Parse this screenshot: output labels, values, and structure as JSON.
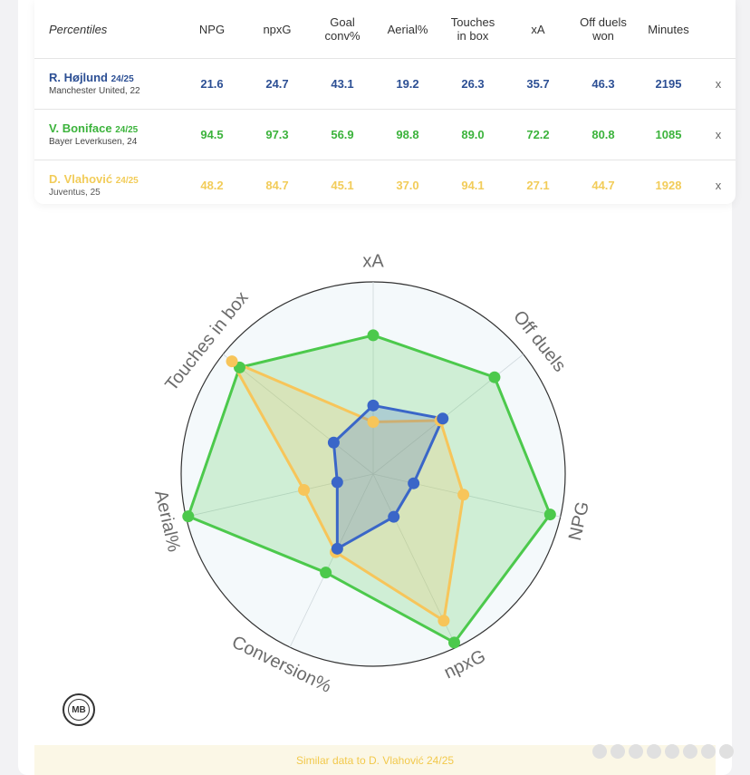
{
  "table": {
    "header": [
      "Percentiles",
      "NPG",
      "npxG",
      "Goal conv%",
      "Aerial%",
      "Touches in box",
      "xA",
      "Off duels won",
      "Minutes"
    ],
    "header_lines": [
      [
        "Percentiles"
      ],
      [
        "NPG"
      ],
      [
        "npxG"
      ],
      [
        "Goal",
        "conv%"
      ],
      [
        "Aerial%"
      ],
      [
        "Touches",
        "in box"
      ],
      [
        "xA"
      ],
      [
        "Off duels",
        "won"
      ],
      [
        "Minutes"
      ]
    ],
    "remove_label": "x",
    "rows": [
      {
        "name": "R. Højlund",
        "season": "24/25",
        "club": "Manchester United, 22",
        "color": "#2c4f94",
        "values": [
          "21.6",
          "24.7",
          "43.1",
          "19.2",
          "26.3",
          "35.7",
          "46.3",
          "2195"
        ]
      },
      {
        "name": "V. Boniface",
        "season": "24/25",
        "club": "Bayer Leverkusen, 24",
        "color": "#3cb33c",
        "values": [
          "94.5",
          "97.3",
          "56.9",
          "98.8",
          "89.0",
          "72.2",
          "80.8",
          "1085"
        ]
      },
      {
        "name": "D. Vlahović",
        "season": "24/25",
        "club": "Juventus, 25",
        "color": "#f2cc59",
        "values": [
          "48.2",
          "84.7",
          "45.1",
          "37.0",
          "94.1",
          "27.1",
          "44.7",
          "1928"
        ]
      }
    ]
  },
  "chart_data": {
    "type": "radar",
    "axes": [
      "xA",
      "Off duels",
      "NPG",
      "npxG",
      "Conversion%",
      "Aerial%",
      "Touches in box"
    ],
    "range": [
      0,
      100
    ],
    "series": [
      {
        "name": "R. Højlund",
        "color": "#3a66c8",
        "values": [
          35.7,
          46.3,
          21.6,
          24.7,
          43.1,
          19.2,
          26.3
        ]
      },
      {
        "name": "V. Boniface",
        "color": "#4cc94c",
        "values": [
          72.2,
          80.8,
          94.5,
          97.3,
          56.9,
          98.8,
          89.0
        ]
      },
      {
        "name": "D. Vlahović",
        "color": "#f7c55a",
        "values": [
          27.1,
          44.7,
          48.2,
          84.7,
          45.1,
          37.0,
          94.1
        ]
      }
    ]
  },
  "logo": {
    "text": "MB"
  },
  "footer": {
    "text": "Similar data to D. Vlahović 24/25"
  }
}
